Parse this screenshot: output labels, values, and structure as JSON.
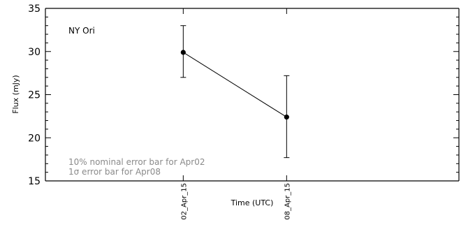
{
  "chart_data": {
    "type": "scatter",
    "xlabel": "Time (UTC)",
    "ylabel": "Flux (mJy)",
    "ylim": [
      15,
      35
    ],
    "yticks": [
      15,
      20,
      25,
      30,
      35
    ],
    "categories": [
      "02_Apr_15",
      "08_Apr_15"
    ],
    "x_day": [
      2,
      8
    ],
    "xlim_day": [
      -6,
      18
    ],
    "series": [
      {
        "values": [
          29.9,
          22.4
        ],
        "err_low": [
          27.0,
          17.7
        ],
        "err_high": [
          33.0,
          27.2
        ],
        "connected": true
      }
    ],
    "annotations": {
      "source": "NY Ori",
      "notes": [
        "10% nominal error bar for Apr02",
        "1σ error bar for Apr08"
      ]
    },
    "grid": false
  }
}
